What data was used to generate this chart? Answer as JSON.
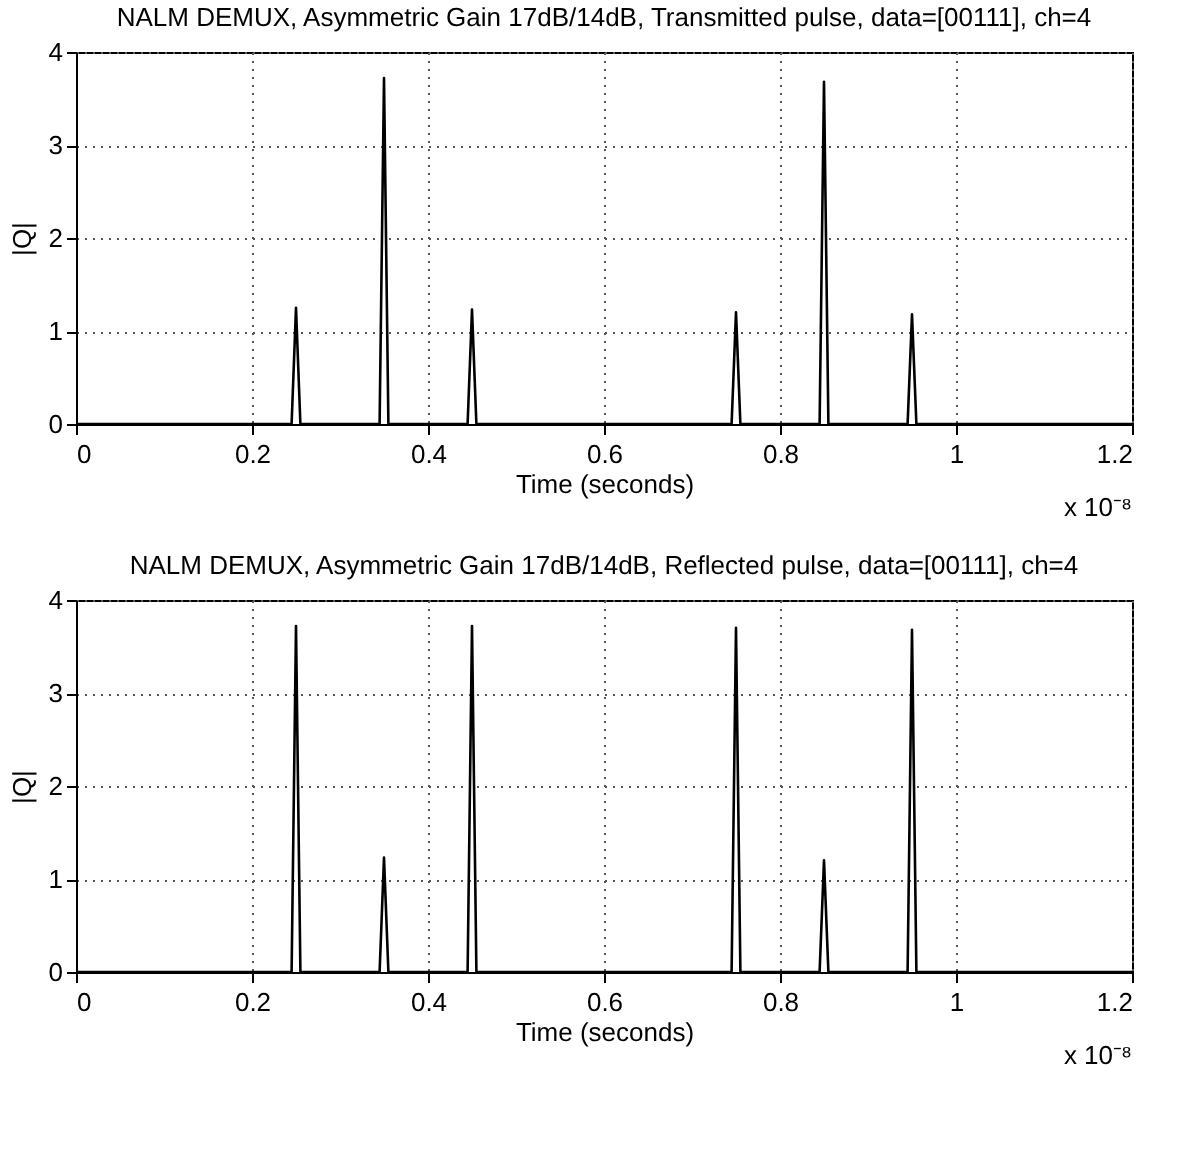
{
  "chart_data": [
    {
      "type": "line",
      "title": "NALM DEMUX, Asymmetric Gain 17dB/14dB, Transmitted pulse, data=[00111], ch=4",
      "xlabel": "Time (seconds)",
      "ylabel": "|Q|",
      "annotations": [
        "x 10⁻⁸"
      ],
      "x": [
        0,
        0.245,
        0.25,
        0.255,
        0.345,
        0.35,
        0.355,
        0.445,
        0.45,
        0.455,
        0.745,
        0.75,
        0.755,
        0.845,
        0.85,
        0.855,
        0.945,
        0.95,
        0.955,
        1.2
      ],
      "series": [
        {
          "color": "#000000",
          "values": [
            0,
            0,
            1.25,
            0,
            0,
            3.72,
            0,
            0,
            1.23,
            0,
            0,
            1.2,
            0,
            0,
            3.68,
            0,
            0,
            1.18,
            0,
            0
          ]
        }
      ],
      "xlim": [
        0,
        1.2
      ],
      "xticks": [
        0,
        0.2,
        0.4,
        0.6,
        0.8,
        1,
        1.2
      ],
      "ylim": [
        0,
        4
      ],
      "yticks": [
        0,
        1,
        2,
        3,
        4
      ],
      "grid": true,
      "line_style": "solid"
    },
    {
      "type": "line",
      "title": "NALM DEMUX, Asymmetric Gain 17dB/14dB, Reflected pulse, data=[00111], ch=4",
      "xlabel": "Time (seconds)",
      "ylabel": "|Q|",
      "annotations": [
        "x 10⁻⁸"
      ],
      "x": [
        0,
        0.245,
        0.25,
        0.255,
        0.345,
        0.35,
        0.355,
        0.445,
        0.45,
        0.455,
        0.745,
        0.75,
        0.755,
        0.845,
        0.85,
        0.855,
        0.945,
        0.95,
        0.955,
        1.2
      ],
      "series": [
        {
          "color": "#000000",
          "values": [
            0,
            0,
            3.72,
            0,
            0,
            1.23,
            0,
            0,
            3.72,
            0,
            0,
            3.7,
            0,
            0,
            1.2,
            0,
            0,
            3.68,
            0,
            0
          ]
        }
      ],
      "xlim": [
        0,
        1.2
      ],
      "xticks": [
        0,
        0.2,
        0.4,
        0.6,
        0.8,
        1,
        1.2
      ],
      "ylim": [
        0,
        4
      ],
      "yticks": [
        0,
        1,
        2,
        3,
        4
      ],
      "grid": true,
      "line_style": "solid"
    }
  ]
}
